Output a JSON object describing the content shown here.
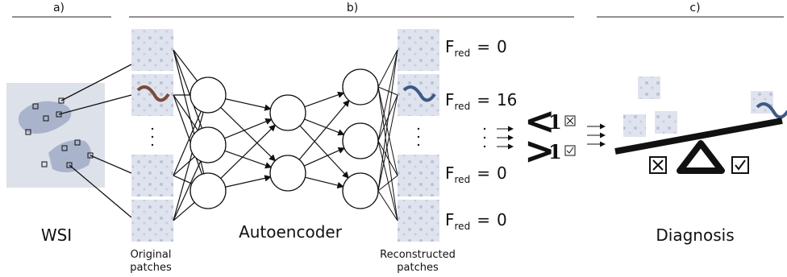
{
  "sections": [
    {
      "label": "a)"
    },
    {
      "label": "b)"
    },
    {
      "label": "c)"
    }
  ],
  "wsi": {
    "label": "WSI"
  },
  "original_patches": {
    "label_lines": [
      "Original",
      "patches"
    ]
  },
  "autoencoder": {
    "label": "Autoencoder"
  },
  "reconstructed_patches": {
    "label_lines": [
      "Reconstructed",
      "patches"
    ],
    "scores": [
      {
        "symbol": "F",
        "subscript": "red",
        "relation": "=",
        "value": "0"
      },
      {
        "symbol": "F",
        "subscript": "red",
        "relation": "=",
        "value": "16"
      },
      {
        "symbol": "F",
        "subscript": "red",
        "relation": "=",
        "value": "0"
      },
      {
        "symbol": "F",
        "subscript": "red",
        "relation": "=",
        "value": "0"
      }
    ]
  },
  "comparisons": [
    {
      "operator": "<",
      "threshold": "1"
    },
    {
      "operator": ">",
      "threshold": "1"
    }
  ],
  "diagnosis": {
    "label": "Diagnosis"
  }
}
